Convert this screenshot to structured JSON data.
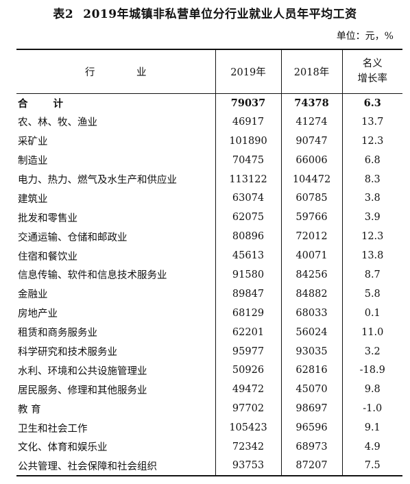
{
  "title": {
    "label": "表2",
    "text": "2019年城镇非私营单位分行业就业人员年平均工资"
  },
  "unit": "单位：元，%",
  "table": {
    "headers": {
      "industry": "行 业",
      "y2019": "2019年",
      "y2018": "2018年",
      "rate_line1": "名义",
      "rate_line2": "增长率"
    },
    "rows": [
      {
        "industry": "合 计",
        "y2019": "79037",
        "y2018": "74378",
        "rate": "6.3"
      },
      {
        "industry": "农、林、牧、渔业",
        "y2019": "46917",
        "y2018": "41274",
        "rate": "13.7"
      },
      {
        "industry": "采矿业",
        "y2019": "101890",
        "y2018": "90747",
        "rate": "12.3"
      },
      {
        "industry": "制造业",
        "y2019": "70475",
        "y2018": "66006",
        "rate": "6.8"
      },
      {
        "industry": "电力、热力、燃气及水生产和供应业",
        "y2019": "113122",
        "y2018": "104472",
        "rate": "8.3"
      },
      {
        "industry": "建筑业",
        "y2019": "63074",
        "y2018": "60785",
        "rate": "3.8"
      },
      {
        "industry": "批发和零售业",
        "y2019": "62075",
        "y2018": "59766",
        "rate": "3.9"
      },
      {
        "industry": "交通运输、仓储和邮政业",
        "y2019": "80896",
        "y2018": "72012",
        "rate": "12.3"
      },
      {
        "industry": "住宿和餐饮业",
        "y2019": "45613",
        "y2018": "40071",
        "rate": "13.8"
      },
      {
        "industry": "信息传输、软件和信息技术服务业",
        "y2019": "91580",
        "y2018": "84256",
        "rate": "8.7"
      },
      {
        "industry": "金融业",
        "y2019": "89847",
        "y2018": "84882",
        "rate": "5.8"
      },
      {
        "industry": "房地产业",
        "y2019": "68129",
        "y2018": "68033",
        "rate": "0.1"
      },
      {
        "industry": "租赁和商务服务业",
        "y2019": "62201",
        "y2018": "56024",
        "rate": "11.0"
      },
      {
        "industry": "科学研究和技术服务业",
        "y2019": "95977",
        "y2018": "93035",
        "rate": "3.2"
      },
      {
        "industry": "水利、环境和公共设施管理业",
        "y2019": "50926",
        "y2018": "62816",
        "rate": "-18.9"
      },
      {
        "industry": "居民服务、修理和其他服务业",
        "y2019": "49472",
        "y2018": "45070",
        "rate": "9.8"
      },
      {
        "industry": "教 育",
        "y2019": "97702",
        "y2018": "98697",
        "rate": "-1.0"
      },
      {
        "industry": "卫生和社会工作",
        "y2019": "105423",
        "y2018": "96596",
        "rate": "9.1"
      },
      {
        "industry": "文化、体育和娱乐业",
        "y2019": "72342",
        "y2018": "68973",
        "rate": "4.9"
      },
      {
        "industry": "公共管理、社会保障和社会组织",
        "y2019": "93753",
        "y2018": "87207",
        "rate": "7.5"
      }
    ]
  }
}
